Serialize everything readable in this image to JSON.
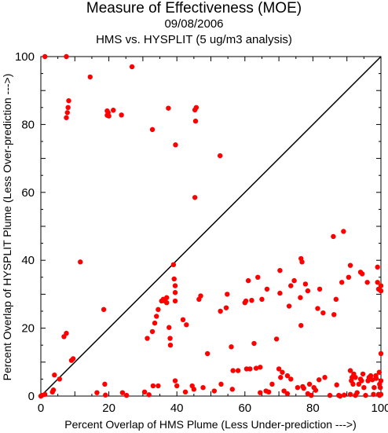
{
  "chart_data": {
    "type": "scatter",
    "title": "Measure of Effectiveness (MOE)",
    "subtitle_date": "09/08/2006",
    "subtitle_analysis": "HMS vs. HYSPLIT  (5 ug/m3 analysis)",
    "xlabel": "Percent Overlap of HMS Plume (Less Under-prediction --->)",
    "ylabel": "Percent Overlap of HYSPLIT Plume (Less Over-prediction --->)",
    "xlim": [
      0,
      100
    ],
    "ylim": [
      0,
      100
    ],
    "xticks": [
      "0",
      "20",
      "40",
      "60",
      "80",
      "100"
    ],
    "yticks": [
      "0",
      "20",
      "40",
      "60",
      "80",
      "100"
    ],
    "grid": false,
    "reference_line": "diagonal y = x",
    "point_color": "#ff0000",
    "points": [
      [
        1.2,
        100
      ],
      [
        7.5,
        100
      ],
      [
        8.2,
        87
      ],
      [
        8,
        85
      ],
      [
        7.8,
        83.5
      ],
      [
        7.5,
        82
      ],
      [
        14.5,
        94
      ],
      [
        19.5,
        84
      ],
      [
        19.8,
        83.5
      ],
      [
        19.5,
        82.7
      ],
      [
        20,
        82.5
      ],
      [
        21.3,
        84.2
      ],
      [
        23.7,
        82.8
      ],
      [
        26.8,
        97
      ],
      [
        32.8,
        78.5
      ],
      [
        37.5,
        84.8
      ],
      [
        39.6,
        74
      ],
      [
        45.7,
        85
      ],
      [
        45.3,
        84.3
      ],
      [
        45.5,
        81
      ],
      [
        45.3,
        58.5
      ],
      [
        52.7,
        70.8
      ],
      [
        11.6,
        39.5
      ],
      [
        39,
        38.7
      ],
      [
        7.5,
        18.5
      ],
      [
        6.8,
        17.5
      ],
      [
        9.5,
        11
      ],
      [
        9,
        10.5
      ],
      [
        5.5,
        5
      ],
      [
        4,
        6.2
      ],
      [
        3.7,
        1.8
      ],
      [
        3.4,
        1.2
      ],
      [
        0,
        0
      ],
      [
        0.3,
        0.2
      ],
      [
        1.2,
        0.5
      ],
      [
        16.5,
        1
      ],
      [
        19,
        0.3
      ],
      [
        24,
        1
      ],
      [
        25.2,
        0.2
      ],
      [
        18.8,
        3.5
      ],
      [
        18.5,
        25.5
      ],
      [
        30.5,
        1.2
      ],
      [
        31.8,
        0.4
      ],
      [
        33,
        3
      ],
      [
        34.5,
        3
      ],
      [
        31.3,
        17
      ],
      [
        32.8,
        19
      ],
      [
        33.5,
        21.5
      ],
      [
        34,
        23.5
      ],
      [
        34.5,
        25.5
      ],
      [
        35.5,
        28
      ],
      [
        36,
        28.5
      ],
      [
        36.5,
        28
      ],
      [
        37,
        29
      ],
      [
        37,
        27.5
      ],
      [
        37.7,
        20.2
      ],
      [
        38,
        17
      ],
      [
        38.1,
        15
      ],
      [
        39.5,
        32.5
      ],
      [
        39.2,
        34.5
      ],
      [
        39.5,
        30.5
      ],
      [
        39.5,
        28
      ],
      [
        39.5,
        4.5
      ],
      [
        40,
        3
      ],
      [
        41.8,
        22.5
      ],
      [
        42.8,
        21
      ],
      [
        42.5,
        1.2
      ],
      [
        44.5,
        3
      ],
      [
        45,
        2
      ],
      [
        46.5,
        28.5
      ],
      [
        47,
        29.5
      ],
      [
        47.7,
        2.5
      ],
      [
        49,
        12.5
      ],
      [
        51,
        1.5
      ],
      [
        52.8,
        25
      ],
      [
        53,
        3.5
      ],
      [
        54.5,
        26
      ],
      [
        54.8,
        30
      ],
      [
        56.3,
        2
      ],
      [
        56.5,
        7.5
      ],
      [
        56,
        14.5
      ],
      [
        58,
        7.5
      ],
      [
        60.5,
        8
      ],
      [
        60,
        27.5
      ],
      [
        60.3,
        28
      ],
      [
        61,
        34
      ],
      [
        61.5,
        8
      ],
      [
        62,
        28.2
      ],
      [
        62.7,
        15.5
      ],
      [
        63.3,
        8.2
      ],
      [
        63.8,
        35
      ],
      [
        64.5,
        1
      ],
      [
        65,
        28.5
      ],
      [
        64.5,
        8.5
      ],
      [
        66.2,
        1.5
      ],
      [
        66.5,
        31.5
      ],
      [
        67,
        1.2
      ],
      [
        68,
        3.5
      ],
      [
        69.3,
        16.8
      ],
      [
        70,
        8
      ],
      [
        70.3,
        30.3
      ],
      [
        70.3,
        37
      ],
      [
        70.5,
        5.5
      ],
      [
        71.5,
        1.5
      ],
      [
        71,
        7
      ],
      [
        72.5,
        0.7
      ],
      [
        72.5,
        6
      ],
      [
        73.5,
        5
      ],
      [
        73,
        26.5
      ],
      [
        73.5,
        32.5
      ],
      [
        74.5,
        34
      ],
      [
        75.5,
        2.5
      ],
      [
        76.3,
        29
      ],
      [
        76.5,
        40.5
      ],
      [
        76.8,
        39.5
      ],
      [
        76.5,
        20.8
      ],
      [
        77,
        2.8
      ],
      [
        77.3,
        2.3
      ],
      [
        77.8,
        33
      ],
      [
        78.5,
        31
      ],
      [
        78.5,
        0.7
      ],
      [
        79,
        3.5
      ],
      [
        79.5,
        0.2
      ],
      [
        80.3,
        2.5
      ],
      [
        80.8,
        1.7
      ],
      [
        81.4,
        25.8
      ],
      [
        81.8,
        4.8
      ],
      [
        82,
        31.5
      ],
      [
        83.5,
        5.5
      ],
      [
        83,
        24.5
      ],
      [
        85,
        0.2
      ],
      [
        86,
        47
      ],
      [
        86.2,
        24
      ],
      [
        86.8,
        28.5
      ],
      [
        87,
        3.3
      ],
      [
        87.6,
        0.2
      ],
      [
        88,
        0
      ],
      [
        88.5,
        33.5
      ],
      [
        89,
        48.5
      ],
      [
        89.2,
        0.3
      ],
      [
        90.5,
        35
      ],
      [
        91,
        38.5
      ],
      [
        91,
        7.5
      ],
      [
        91,
        0.5
      ],
      [
        91.3,
        4.5
      ],
      [
        91.5,
        5.5
      ],
      [
        91.8,
        3.5
      ],
      [
        92,
        6.5
      ],
      [
        92.5,
        5.5
      ],
      [
        92.5,
        0.2
      ],
      [
        93,
        1
      ],
      [
        93.5,
        3.5
      ],
      [
        94,
        36.5
      ],
      [
        94.5,
        36
      ],
      [
        94,
        5
      ],
      [
        94.3,
        4.5
      ],
      [
        94.7,
        6.5
      ],
      [
        95,
        2.5
      ],
      [
        95.5,
        0.2
      ],
      [
        96,
        33.5
      ],
      [
        96.2,
        4.5
      ],
      [
        96.5,
        5.5
      ],
      [
        97,
        6
      ],
      [
        97.5,
        4.8
      ],
      [
        97.8,
        0.5
      ],
      [
        98,
        2.5
      ],
      [
        98.5,
        6
      ],
      [
        98.6,
        5.2
      ],
      [
        99,
        33.5
      ],
      [
        99.3,
        31.5
      ],
      [
        99,
        38
      ],
      [
        99.5,
        7
      ],
      [
        99.6,
        3.5
      ],
      [
        99.8,
        2.5
      ],
      [
        99.6,
        0.2
      ],
      [
        100,
        32.5
      ],
      [
        100,
        31
      ],
      [
        100,
        12.5
      ],
      [
        100,
        4.5
      ],
      [
        100,
        0.5
      ],
      [
        99.3,
        0.5
      ]
    ]
  }
}
